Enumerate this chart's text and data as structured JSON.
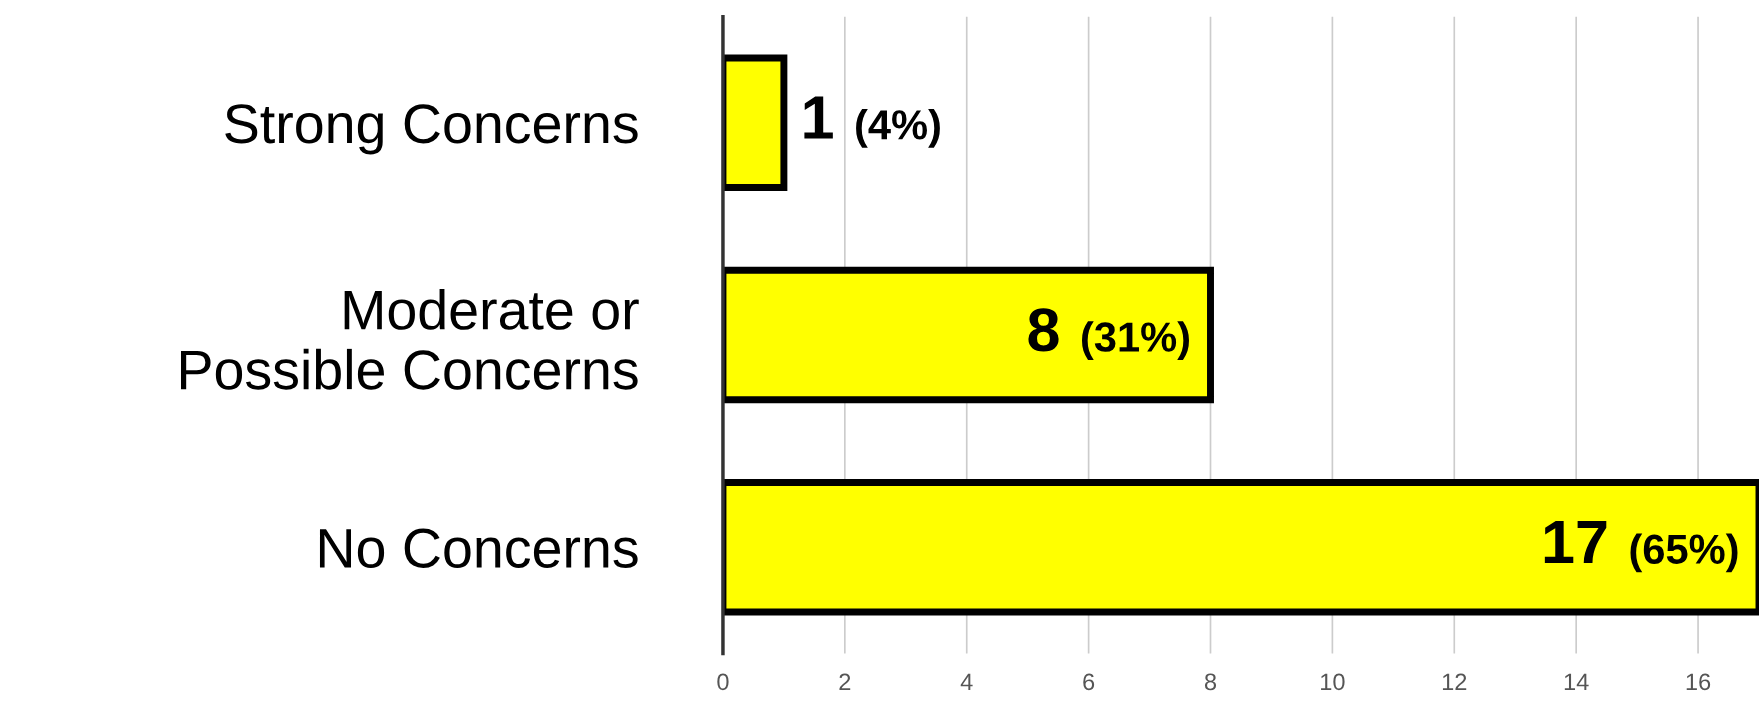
{
  "chart_data": {
    "type": "bar",
    "orientation": "horizontal",
    "categories": [
      "Strong Concerns",
      "Moderate or\nPossible Concerns",
      "No Concerns"
    ],
    "values": [
      1,
      8,
      17
    ],
    "value_labels": [
      "1 (4%)",
      "8 (31%)",
      "17 (65%)"
    ],
    "color": "#ffff00",
    "xlim": [
      0,
      17
    ],
    "xticks": [
      0,
      2,
      4,
      6,
      8,
      10,
      12,
      14,
      16
    ],
    "grid": "x",
    "legend": false
  }
}
